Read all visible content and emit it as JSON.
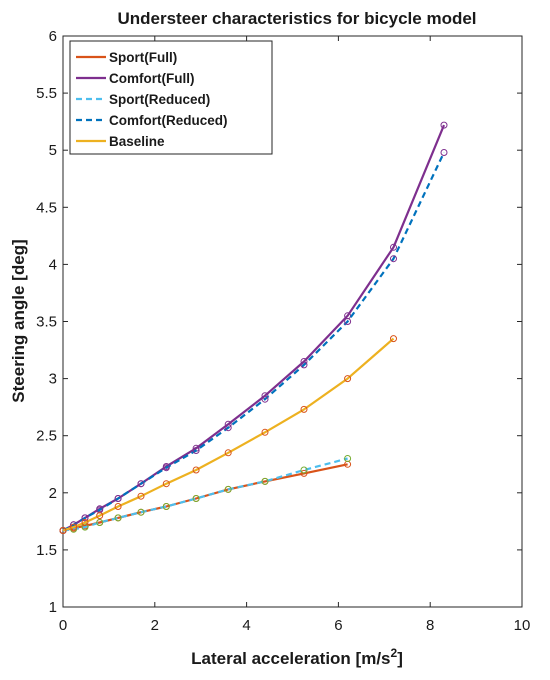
{
  "chart_data": {
    "type": "line",
    "title": "Understeer characteristics for bicycle model",
    "xlabel": "Lateral acceleration [m/s",
    "xlabel_sup": "2",
    "xlabel_end": "]",
    "ylabel": "Steering angle [deg]",
    "xlim": [
      0,
      10
    ],
    "ylim": [
      1,
      6
    ],
    "xticks": [
      "0",
      "2",
      "4",
      "6",
      "8",
      "10"
    ],
    "yticks": [
      "1",
      "1.5",
      "2",
      "2.5",
      "3",
      "3.5",
      "4",
      "4.5",
      "5",
      "5.5",
      "6"
    ],
    "grid": false,
    "legend_position": "top-left",
    "series": [
      {
        "name": "Sport(Full)",
        "color": "#d95319",
        "dashed": false,
        "marker_color": "#d95319",
        "x": [
          0.0,
          0.23,
          0.48,
          0.8,
          1.2,
          1.7,
          2.25,
          2.9,
          3.6,
          4.4,
          5.25,
          6.2
        ],
        "y": [
          1.67,
          1.69,
          1.71,
          1.74,
          1.78,
          1.83,
          1.88,
          1.95,
          2.03,
          2.1,
          2.17,
          2.25
        ]
      },
      {
        "name": "Comfort(Full)",
        "color": "#7e2f8e",
        "dashed": false,
        "marker_color": "#7e2f8e",
        "x": [
          0.0,
          0.23,
          0.48,
          0.8,
          1.2,
          1.7,
          2.25,
          2.9,
          3.6,
          4.4,
          5.25,
          6.2,
          7.2,
          8.3
        ],
        "y": [
          1.67,
          1.72,
          1.78,
          1.86,
          1.95,
          2.08,
          2.23,
          2.39,
          2.6,
          2.85,
          3.15,
          3.55,
          4.15,
          5.22
        ]
      },
      {
        "name": "Sport(Reduced)",
        "color": "#4dbeee",
        "dashed": true,
        "marker_color": "#77ac30",
        "x": [
          0.0,
          0.23,
          0.48,
          0.8,
          1.2,
          1.7,
          2.25,
          2.9,
          3.6,
          4.4,
          5.25,
          6.2
        ],
        "y": [
          1.67,
          1.68,
          1.7,
          1.74,
          1.78,
          1.83,
          1.88,
          1.95,
          2.03,
          2.1,
          2.2,
          2.3
        ]
      },
      {
        "name": "Comfort(Reduced)",
        "color": "#0072bd",
        "dashed": true,
        "marker_color": "#7e2f8e",
        "x": [
          0.0,
          0.23,
          0.48,
          0.8,
          1.2,
          1.7,
          2.25,
          2.9,
          3.6,
          4.4,
          5.25,
          6.2,
          7.2,
          8.3
        ],
        "y": [
          1.67,
          1.72,
          1.78,
          1.85,
          1.95,
          2.08,
          2.22,
          2.37,
          2.57,
          2.82,
          3.12,
          3.5,
          4.05,
          4.98
        ]
      },
      {
        "name": "Baseline",
        "color": "#edb120",
        "dashed": false,
        "marker_color": "#d95319",
        "x": [
          0.0,
          0.23,
          0.48,
          0.8,
          1.2,
          1.7,
          2.25,
          2.9,
          3.6,
          4.4,
          5.25,
          6.2,
          7.2
        ],
        "y": [
          1.67,
          1.7,
          1.74,
          1.8,
          1.88,
          1.97,
          2.08,
          2.2,
          2.35,
          2.53,
          2.73,
          3.0,
          3.35
        ]
      }
    ]
  }
}
